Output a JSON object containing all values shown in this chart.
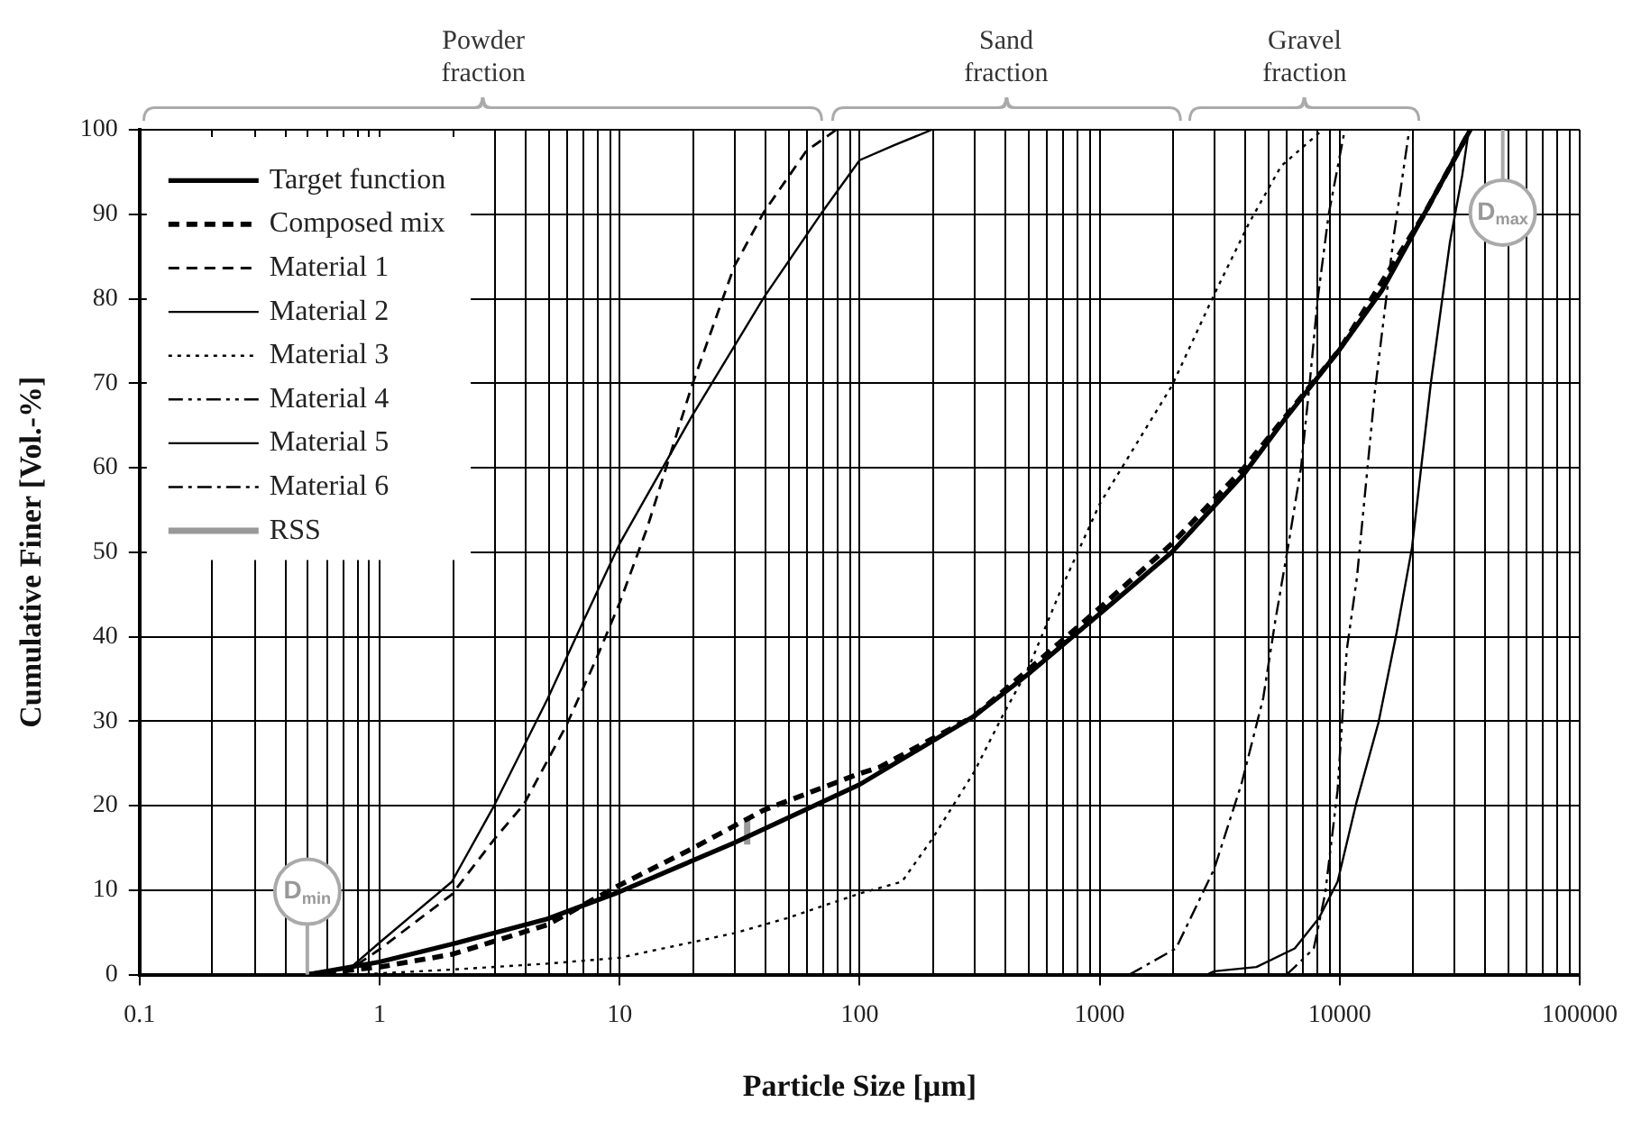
{
  "chart_data": {
    "type": "line",
    "xlabel": "Particle Size [µm]",
    "ylabel": "Cumulative Finer [Vol.-%]",
    "log": "x",
    "grid": true,
    "legend": "top left",
    "marker": "none",
    "xlim": [
      0.1,
      100000
    ],
    "xticks": [
      0.1,
      1,
      10,
      100,
      1000,
      10000,
      100000
    ],
    "ylim": [
      0,
      100
    ],
    "yticks": [
      0,
      10,
      20,
      30,
      40,
      50,
      60,
      70,
      80,
      90,
      100
    ],
    "series": [
      {
        "name": "Target function",
        "color": "#000000",
        "line_style": "solid",
        "x": [
          0.5,
          1,
          2,
          5,
          10,
          30,
          100,
          300,
          500,
          1000,
          2000,
          4000,
          6000,
          8000,
          10000,
          15000,
          22500,
          35000
        ],
        "values": [
          0,
          1.5,
          3.6,
          6.6,
          9.8,
          15.6,
          22.5,
          30.6,
          35.5,
          42.7,
          50,
          59.3,
          66,
          70.5,
          74,
          81,
          90,
          100
        ]
      },
      {
        "name": "Composed mix",
        "color": "#000000",
        "line_style": "dashed",
        "x": [
          0.5,
          1,
          2,
          5,
          10,
          20,
          40,
          100,
          120,
          300,
          500,
          1000,
          2000,
          4000,
          10000,
          22500,
          35000
        ],
        "values": [
          0,
          0.9,
          2.4,
          5.9,
          10.6,
          14.9,
          19.5,
          23.8,
          24.5,
          30.6,
          36,
          43.4,
          51,
          60,
          74,
          90,
          100
        ]
      },
      {
        "name": "Material 1",
        "color": "#000000",
        "line_style": "dashed",
        "x": [
          0.7,
          1,
          2,
          3,
          4,
          6,
          8,
          10,
          13,
          20,
          30,
          40,
          60,
          80
        ],
        "values": [
          0,
          3,
          9.5,
          16,
          20.2,
          29.5,
          37.4,
          44,
          52.8,
          69.7,
          83.8,
          90.3,
          97.5,
          100
        ]
      },
      {
        "name": "Material 2",
        "color": "#000000",
        "line_style": "solid",
        "x": [
          2800,
          3000,
          4500,
          6500,
          8200,
          9800,
          11750,
          14500,
          17300,
          20000,
          24000,
          28800,
          32400,
          34500
        ],
        "values": [
          0,
          0.4,
          0.9,
          3.1,
          6.7,
          11,
          20.4,
          29.8,
          40.6,
          50.5,
          70.1,
          86.7,
          94.6,
          100
        ]
      },
      {
        "name": "Material 3",
        "color": "#000000",
        "line_style": "dotted",
        "x": [
          0.8,
          2,
          5,
          10,
          30,
          50,
          100,
          150,
          200,
          300,
          400,
          500,
          700,
          1000,
          2000,
          3000,
          4200,
          5700,
          8500
        ],
        "values": [
          0,
          0.6,
          1.3,
          2,
          4.9,
          6.7,
          9.6,
          11,
          16,
          24,
          31,
          36,
          46,
          55.7,
          69.7,
          80.5,
          89,
          95.7,
          100
        ]
      },
      {
        "name": "Material 4",
        "color": "#000000",
        "line_style": "dashdotdot",
        "x": [
          6000,
          6500,
          7800,
          8700,
          9800,
          10700,
          11800,
          14000,
          16800,
          19500
        ],
        "values": [
          0,
          0.9,
          3.1,
          9.6,
          21.8,
          38.4,
          47,
          68.9,
          87.4,
          100
        ]
      },
      {
        "name": "Material 5",
        "color": "#000000",
        "line_style": "solid",
        "x": [
          0.7,
          1,
          2,
          3,
          5,
          7,
          10,
          20,
          40,
          70,
          100,
          140,
          200
        ],
        "values": [
          0,
          3.8,
          11,
          20,
          32.6,
          41.6,
          51,
          66.1,
          80.2,
          90.3,
          96.4,
          98.2,
          100
        ]
      },
      {
        "name": "Material 6",
        "color": "#000000",
        "line_style": "dashdot",
        "x": [
          1330,
          2080,
          3000,
          3900,
          4800,
          5400,
          6100,
          6900,
          7500,
          8100,
          9000,
          10500
        ],
        "values": [
          0,
          3.1,
          12.5,
          22.6,
          32.7,
          42,
          50.7,
          60,
          70,
          80,
          90,
          100
        ]
      },
      {
        "name": "RSS",
        "color": "#999999",
        "line_style": "solid",
        "x": [
          34,
          34
        ],
        "values": [
          15.4,
          18.6
        ]
      }
    ],
    "annotations": [
      "Powder fraction",
      "Sand fraction",
      "Gravel fraction",
      {
        "text": "D$_{min}$",
        "x": 0.5,
        "y": 0
      },
      {
        "text": "D$_{max}$",
        "x": 35000,
        "y": 100
      }
    ]
  }
}
